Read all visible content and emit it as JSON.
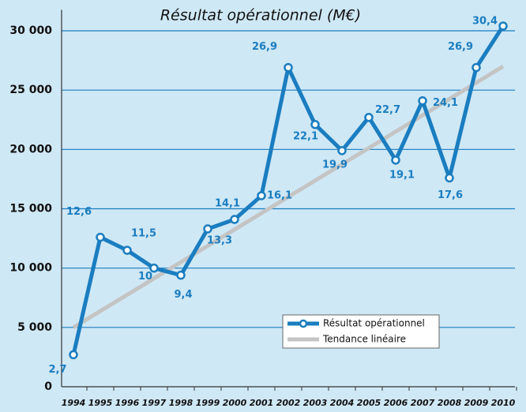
{
  "chart_data": {
    "type": "line",
    "title": "Résultat opérationnel (M€)",
    "categories": [
      "1994",
      "1995",
      "1996",
      "1997",
      "1998",
      "1999",
      "2000",
      "2001",
      "2002",
      "2003",
      "2004",
      "2005",
      "2006",
      "2007",
      "2008",
      "2009",
      "2010"
    ],
    "series": [
      {
        "name": "Résultat opérationnel",
        "color": "#1a7dc0",
        "values": [
          2700,
          12600,
          11500,
          10000,
          9400,
          13300,
          14100,
          16100,
          26900,
          22100,
          19900,
          22700,
          19100,
          24100,
          17600,
          26900,
          30400
        ],
        "value_labels": [
          "2,7",
          "12,6",
          "11,5",
          "10",
          "9,4",
          "13,3",
          "14,1",
          "16,1",
          "26,9",
          "22,1",
          "19,9",
          "22,7",
          "19,1",
          "24,1",
          "17,6",
          "26,9",
          "30,4"
        ]
      },
      {
        "name": "Tendance linéaire",
        "color": "#c4c4c4",
        "values": [
          5000,
          6375,
          7750,
          9125,
          10500,
          11875,
          13250,
          14625,
          16000,
          17375,
          18750,
          20125,
          21500,
          22875,
          24250,
          25625,
          27000
        ]
      }
    ],
    "ylim": [
      0,
      31500
    ],
    "yticks": [
      0,
      {
        "value": 5000,
        "label": "5 000"
      },
      {
        "value": 10000,
        "label": "10 000"
      },
      {
        "value": 15000,
        "label": "15 000"
      },
      {
        "value": 20000,
        "label": "20 000"
      },
      {
        "value": 25000,
        "label": "25 000"
      },
      {
        "value": 30000,
        "label": "30 000"
      }
    ],
    "grid": true,
    "legend": "lower right"
  }
}
